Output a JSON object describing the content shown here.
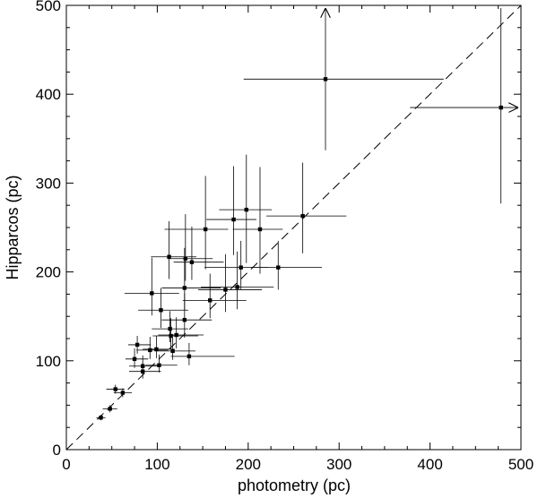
{
  "chart_data": {
    "type": "scatter",
    "title": "",
    "xlabel": "photometry (pc)",
    "ylabel": "Hipparcos (pc)",
    "xlim": [
      0,
      500
    ],
    "ylim": [
      0,
      500
    ],
    "xticks": [
      0,
      100,
      200,
      300,
      400,
      500
    ],
    "yticks": [
      0,
      100,
      200,
      300,
      400,
      500
    ],
    "grid": false,
    "reference_line": {
      "style": "dashed",
      "from": [
        0,
        0
      ],
      "to": [
        500,
        500
      ]
    },
    "series": [
      {
        "points": [
          {
            "x": 285,
            "y": 417,
            "xerr": [
              90,
              130
            ],
            "yerr": [
              80,
              "upper-limit"
            ]
          },
          {
            "x": 478,
            "y": 385,
            "xerr": [
              100,
              "upper-limit"
            ],
            "yerr": [
              108,
              112
            ]
          },
          {
            "x": 260,
            "y": 263,
            "xerr": [
              40,
              48
            ],
            "yerr": [
              42,
              60
            ]
          },
          {
            "x": 198,
            "y": 270,
            "xerr": [
              30,
              28
            ],
            "yerr": [
              60,
              62
            ]
          },
          {
            "x": 184,
            "y": 259,
            "xerr": [
              30,
              25
            ],
            "yerr": [
              40,
              60
            ]
          },
          {
            "x": 213,
            "y": 248,
            "xerr": [
              30,
              25
            ],
            "yerr": [
              50,
              70
            ]
          },
          {
            "x": 153,
            "y": 248,
            "xerr": [
              45,
              25
            ],
            "yerr": [
              45,
              60
            ]
          },
          {
            "x": 233,
            "y": 205,
            "xerr": [
              30,
              48
            ],
            "yerr": [
              25,
              30
            ]
          },
          {
            "x": 192,
            "y": 205,
            "xerr": [
              40,
              30
            ],
            "yerr": [
              25,
              30
            ]
          },
          {
            "x": 113,
            "y": 217,
            "xerr": [
              20,
              30
            ],
            "yerr": [
              25,
              40
            ]
          },
          {
            "x": 131,
            "y": 215,
            "xerr": [
              20,
              30
            ],
            "yerr": [
              25,
              50
            ]
          },
          {
            "x": 138,
            "y": 211,
            "xerr": [
              20,
              35
            ],
            "yerr": [
              20,
              40
            ]
          },
          {
            "x": 130,
            "y": 182,
            "xerr": [
              25,
              40
            ],
            "yerr": [
              25,
              45
            ]
          },
          {
            "x": 175,
            "y": 180,
            "xerr": [
              30,
              40
            ],
            "yerr": [
              25,
              40
            ]
          },
          {
            "x": 188,
            "y": 183,
            "xerr": [
              40,
              40
            ],
            "yerr": [
              25,
              40
            ]
          },
          {
            "x": 94,
            "y": 176,
            "xerr": [
              30,
              30
            ],
            "yerr": [
              25,
              40
            ]
          },
          {
            "x": 158,
            "y": 168,
            "xerr": [
              30,
              40
            ],
            "yerr": [
              20,
              30
            ]
          },
          {
            "x": 104,
            "y": 157,
            "xerr": [
              25,
              30
            ],
            "yerr": [
              20,
              25
            ]
          },
          {
            "x": 130,
            "y": 146,
            "xerr": [
              25,
              30
            ],
            "yerr": [
              20,
              30
            ]
          },
          {
            "x": 114,
            "y": 136,
            "xerr": [
              20,
              20
            ],
            "yerr": [
              15,
              20
            ]
          },
          {
            "x": 115,
            "y": 128,
            "xerr": [
              20,
              30
            ],
            "yerr": [
              15,
              20
            ]
          },
          {
            "x": 121,
            "y": 129,
            "xerr": [
              20,
              30
            ],
            "yerr": [
              15,
              20
            ]
          },
          {
            "x": 135,
            "y": 105,
            "xerr": [
              20,
              50
            ],
            "yerr": [
              10,
              15
            ]
          },
          {
            "x": 117,
            "y": 111,
            "xerr": [
              20,
              25
            ],
            "yerr": [
              10,
              15
            ]
          },
          {
            "x": 78,
            "y": 118,
            "xerr": [
              10,
              15
            ],
            "yerr": [
              10,
              10
            ]
          },
          {
            "x": 92,
            "y": 112,
            "xerr": [
              15,
              20
            ],
            "yerr": [
              10,
              15
            ]
          },
          {
            "x": 99,
            "y": 113,
            "xerr": [
              15,
              20
            ],
            "yerr": [
              10,
              15
            ]
          },
          {
            "x": 75,
            "y": 102,
            "xerr": [
              10,
              15
            ],
            "yerr": [
              10,
              12
            ]
          },
          {
            "x": 84,
            "y": 94,
            "xerr": [
              15,
              20
            ],
            "yerr": [
              10,
              12
            ]
          },
          {
            "x": 102,
            "y": 95,
            "xerr": [
              15,
              20
            ],
            "yerr": [
              8,
              12
            ]
          },
          {
            "x": 84,
            "y": 88,
            "xerr": [
              15,
              20
            ],
            "yerr": [
              8,
              10
            ]
          },
          {
            "x": 54,
            "y": 68,
            "xerr": [
              10,
              10
            ],
            "yerr": [
              5,
              5
            ]
          },
          {
            "x": 62,
            "y": 64,
            "xerr": [
              10,
              10
            ],
            "yerr": [
              5,
              5
            ]
          },
          {
            "x": 48,
            "y": 46,
            "xerr": [
              8,
              8
            ],
            "yerr": [
              4,
              4
            ]
          },
          {
            "x": 38,
            "y": 36,
            "xerr": [
              5,
              5
            ],
            "yerr": [
              3,
              3
            ]
          }
        ]
      }
    ]
  }
}
